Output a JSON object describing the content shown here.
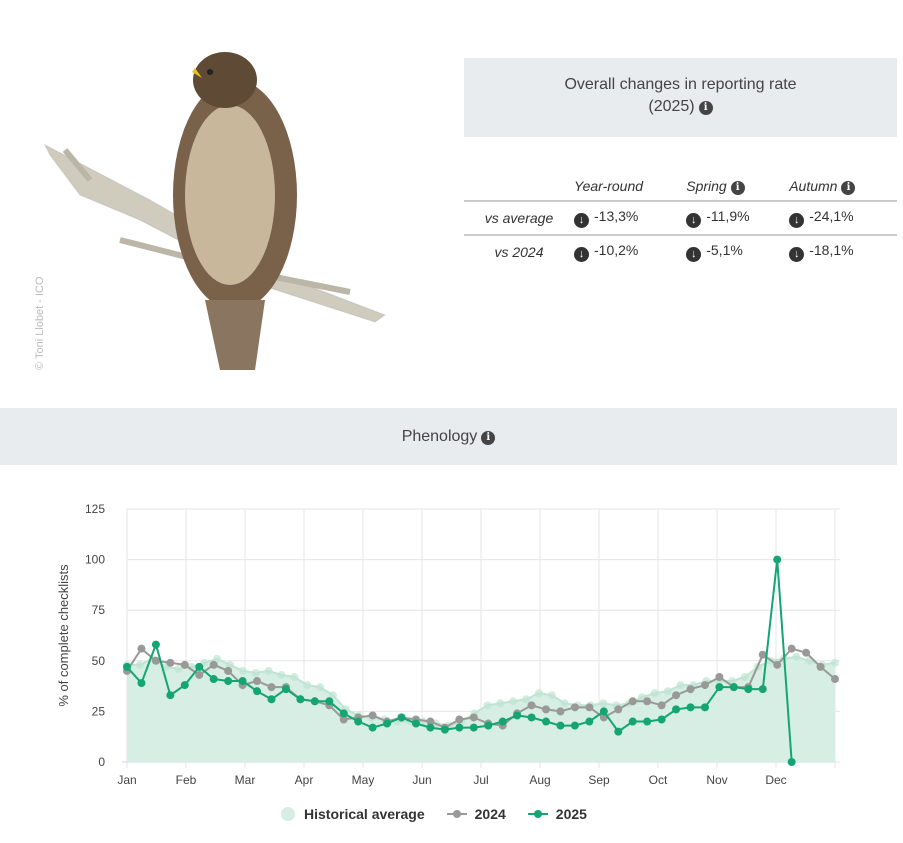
{
  "image": {
    "credit": "© Toni Llobet - ICO"
  },
  "overall": {
    "title_line1": "Overall changes in reporting rate",
    "title_line2": "(2025)",
    "columns": [
      "Year-round",
      "Spring",
      "Autumn"
    ],
    "rows": [
      {
        "label": "vs average",
        "values": [
          "-13,3%",
          "-11,9%",
          "-24,1%"
        ]
      },
      {
        "label": "vs 2024",
        "values": [
          "-10,2%",
          "-5,1%",
          "-18,1%"
        ]
      }
    ]
  },
  "phenology": {
    "title": "Phenology"
  },
  "colors": {
    "hist": "#d6eee3",
    "y2024": "#999999",
    "y2025": "#14a572"
  },
  "chart_data": {
    "type": "line",
    "ylabel": "% of complete checklists",
    "ylim": [
      0,
      125
    ],
    "yticks": [
      0,
      25,
      50,
      75,
      100,
      125
    ],
    "xticks": [
      "Jan",
      "Feb",
      "Mar",
      "Apr",
      "May",
      "Jun",
      "Jul",
      "Aug",
      "Sep",
      "Oct",
      "Nov",
      "Dec"
    ],
    "x_unit": "week index (48 weeks per year)",
    "series": [
      {
        "name": "Historical average",
        "type": "area",
        "values": [
          48,
          48,
          51,
          47,
          46,
          47,
          49,
          51,
          48,
          45,
          44,
          45,
          43,
          42,
          38,
          37,
          33,
          26,
          23,
          22,
          21,
          20,
          20,
          20,
          19,
          18,
          20,
          24,
          28,
          29,
          30,
          31,
          34,
          33,
          29,
          28,
          28,
          29,
          28,
          29,
          32,
          34,
          35,
          38,
          38,
          40,
          40,
          40,
          42,
          47,
          50,
          51,
          52,
          50,
          48,
          49
        ]
      },
      {
        "name": "2024",
        "type": "line",
        "values": [
          45,
          56,
          50,
          49,
          48,
          43,
          48,
          45,
          38,
          40,
          37,
          37,
          31,
          30,
          28,
          21,
          22,
          23,
          20,
          22,
          21,
          20,
          17,
          21,
          22,
          19,
          18,
          24,
          28,
          26,
          25,
          27,
          27,
          22,
          26,
          30,
          30,
          28,
          33,
          36,
          38,
          42,
          37,
          37,
          53,
          48,
          56,
          54,
          47,
          41
        ]
      },
      {
        "name": "2025",
        "type": "line",
        "values": [
          47,
          39,
          58,
          33,
          38,
          47,
          41,
          40,
          40,
          35,
          31,
          36,
          31,
          30,
          30,
          24,
          20,
          17,
          19,
          22,
          19,
          17,
          16,
          17,
          17,
          18,
          20,
          23,
          22,
          20,
          18,
          18,
          20,
          25,
          15,
          20,
          20,
          21,
          26,
          27,
          27,
          37,
          37,
          36,
          36,
          100,
          0
        ]
      }
    ],
    "legend": "bottom-center"
  },
  "legend": {
    "hist": "Historical average",
    "y2024": "2024",
    "y2025": "2025"
  }
}
